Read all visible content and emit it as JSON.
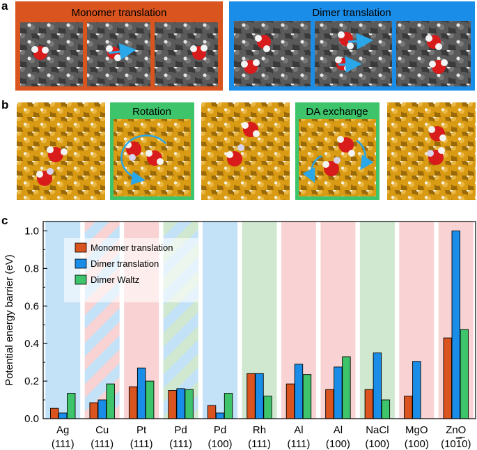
{
  "panel_a": {
    "label": "a",
    "monomer_title": "Monomer translation",
    "dimer_title": "Dimer translation",
    "monomer_color": "#d9541e",
    "dimer_color": "#1a8de8"
  },
  "panel_b": {
    "label": "b",
    "frames": [
      "",
      "Rotation",
      "",
      "DA exchange",
      ""
    ],
    "highlight_color": "#3ec46b"
  },
  "panel_c": {
    "label": "c"
  },
  "chart_data": {
    "type": "bar",
    "title": "",
    "xlabel": "",
    "ylabel": "Potential energy barrier (eV)",
    "ylim": [
      0,
      1.05
    ],
    "yticks": [
      "0.0",
      "0.2",
      "0.4",
      "0.6",
      "0.8",
      "1.0"
    ],
    "ytick_values": [
      0,
      0.2,
      0.4,
      0.6,
      0.8,
      1.0
    ],
    "categories": [
      {
        "name": "Ag",
        "facet": "(111)",
        "background": "blue"
      },
      {
        "name": "Cu",
        "facet": "(111)",
        "background": "red-blue"
      },
      {
        "name": "Pt",
        "facet": "(111)",
        "background": "red"
      },
      {
        "name": "Pd",
        "facet": "(111)",
        "background": "green-blue"
      },
      {
        "name": "Pd",
        "facet": "(100)",
        "background": "blue"
      },
      {
        "name": "Rh",
        "facet": "(111)",
        "background": "green"
      },
      {
        "name": "Al",
        "facet": "(111)",
        "background": "red"
      },
      {
        "name": "Al",
        "facet": "(100)",
        "background": "red"
      },
      {
        "name": "NaCl",
        "facet": "(100)",
        "background": "green"
      },
      {
        "name": "MgO",
        "facet": "(100)",
        "background": "red"
      },
      {
        "name": "ZnO",
        "facet": "(1010)",
        "background": "red"
      }
    ],
    "series": [
      {
        "name": "Monomer translation",
        "color": "#d9541e",
        "values": [
          0.055,
          0.085,
          0.17,
          0.15,
          0.07,
          0.24,
          0.185,
          0.155,
          0.155,
          0.12,
          0.43
        ]
      },
      {
        "name": "Dimer translation",
        "color": "#1a8de8",
        "values": [
          0.03,
          0.1,
          0.27,
          0.16,
          0.03,
          0.24,
          0.29,
          0.275,
          0.35,
          0.305,
          1.0
        ]
      },
      {
        "name": "Dimer Waltz",
        "color": "#3ec46b",
        "values": [
          0.135,
          0.185,
          0.2,
          0.155,
          0.135,
          0.12,
          0.235,
          0.33,
          0.1,
          null,
          0.475
        ]
      }
    ],
    "background_colors": {
      "red": "#f9d3d3",
      "blue": "#c3e1f7",
      "green": "#cfe8cf"
    },
    "legend": "top-left"
  }
}
